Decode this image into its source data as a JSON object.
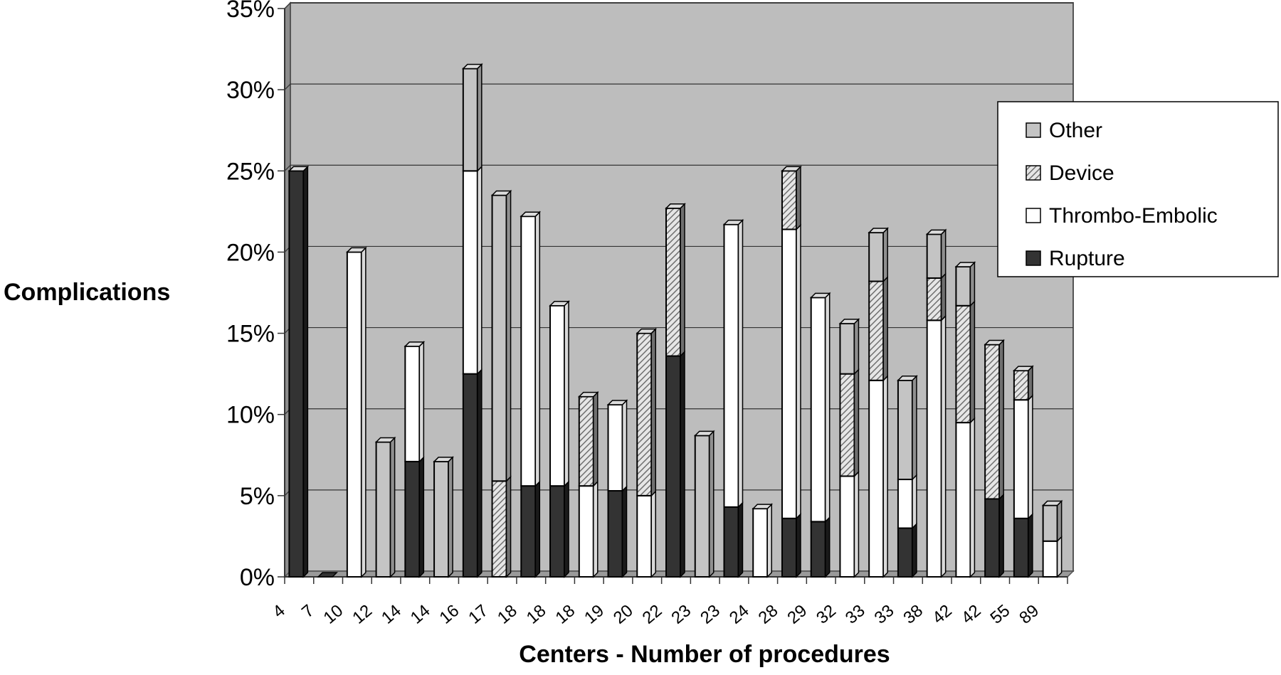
{
  "chart_data": {
    "type": "bar",
    "stacked": true,
    "title": "",
    "xlabel": "Centers - Number of procedures",
    "ylabel": "Complications",
    "ylim": [
      0,
      35
    ],
    "yticks": [
      "0%",
      "5%",
      "10%",
      "15%",
      "20%",
      "25%",
      "30%",
      "35%"
    ],
    "grid": true,
    "legend_position": "right",
    "categories": [
      "4",
      "7",
      "10",
      "12",
      "14",
      "14",
      "16",
      "17",
      "18",
      "18",
      "18",
      "19",
      "20",
      "22",
      "23",
      "23",
      "24",
      "28",
      "29",
      "32",
      "33",
      "33",
      "38",
      "42",
      "42",
      "55",
      "89"
    ],
    "series": [
      {
        "name": "Rupture",
        "values": [
          25,
          0,
          0,
          0,
          7.1,
          0,
          12.5,
          0,
          5.6,
          5.6,
          0,
          5.3,
          0,
          13.6,
          0,
          4.3,
          0,
          3.6,
          3.4,
          0,
          0,
          3.0,
          0,
          0,
          4.8,
          3.6,
          0
        ]
      },
      {
        "name": "Thrombo-Embolic",
        "values": [
          0,
          0,
          20,
          0,
          7.1,
          0,
          12.5,
          0,
          16.6,
          11.1,
          5.6,
          5.3,
          5.0,
          0,
          0,
          17.4,
          4.2,
          17.8,
          13.8,
          6.2,
          12.1,
          3.0,
          15.8,
          9.5,
          0,
          7.3,
          2.2
        ]
      },
      {
        "name": "Device",
        "values": [
          0,
          0,
          0,
          0,
          0,
          0,
          0,
          5.9,
          0,
          0,
          5.5,
          0,
          10.0,
          9.1,
          0,
          0,
          0,
          3.6,
          0,
          6.3,
          6.1,
          0,
          2.6,
          7.2,
          9.5,
          1.8,
          0
        ]
      },
      {
        "name": "Other",
        "values": [
          0,
          0,
          0,
          8.3,
          0,
          7.1,
          6.3,
          17.6,
          0,
          0,
          0,
          0,
          0,
          0,
          8.7,
          0,
          0,
          0,
          0,
          3.1,
          3.0,
          6.1,
          2.7,
          2.4,
          0,
          0,
          2.2
        ]
      }
    ]
  },
  "colors": {
    "plot_background": "#bdbdbd",
    "rupture": "#333333",
    "thrombo_embolic": "#ffffff",
    "device": "#9a9a9a",
    "other": "#c4c4c4"
  }
}
